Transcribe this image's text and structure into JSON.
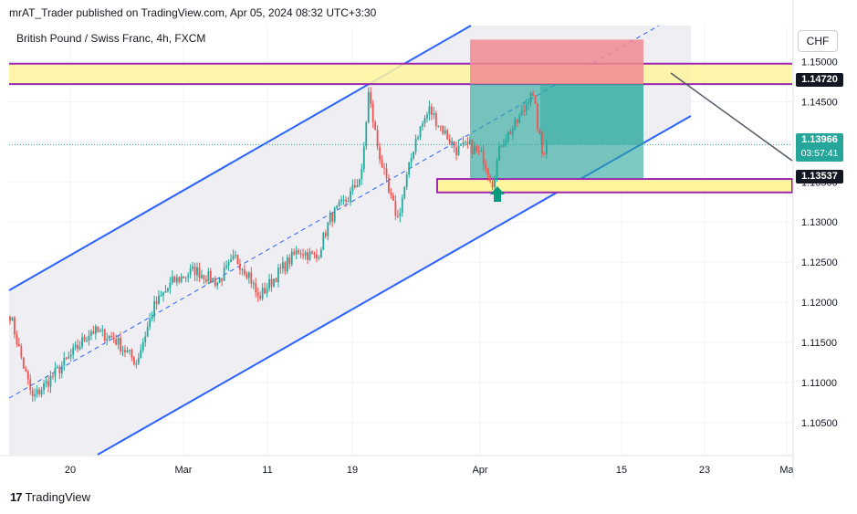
{
  "header": {
    "publisher_line": "mrAT_Trader published on TradingView.com, Apr 05, 2024 08:32 UTC+3:30"
  },
  "symbol": {
    "title": "British Pound / Swiss Franc, 4h, FXCM",
    "currency": "CHF"
  },
  "footer": {
    "brand": "TradingView",
    "mark": "17"
  },
  "colors": {
    "up": "#26a69a",
    "down": "#ef5350",
    "channel_line": "#2962ff",
    "channel_fill": "#eeeef3",
    "zone_fill": "#fff59d",
    "zone_border": "#9c27b0",
    "stop_fill": "#f08a90",
    "target_fill": "#26a69a",
    "arrow": "#089981",
    "price_tag_dark": "#131722"
  },
  "price_labels": {
    "resistance": "1.14720",
    "current_price": "1.13966",
    "countdown": "03:57:41",
    "support": "1.13537"
  },
  "chart_data": {
    "type": "candlestick",
    "title": "British Pound / Swiss Franc, 4h, FXCM",
    "timeframe": "4h",
    "y_axis": {
      "range": [
        1.101,
        1.1545
      ],
      "ticks": [
        "1.15000",
        "1.14500",
        "1.14000",
        "1.13500",
        "1.13000",
        "1.12500",
        "1.12000",
        "1.11500",
        "1.11000",
        "1.10500"
      ],
      "side": "right"
    },
    "x_axis": {
      "ticks": [
        "20",
        "Mar",
        "11",
        "19",
        "Apr",
        "15",
        "23",
        "Ma"
      ]
    },
    "grid": true,
    "anchors": [
      {
        "bar": 0,
        "close": 1.1185
      },
      {
        "bar": 6,
        "close": 1.112
      },
      {
        "bar": 10,
        "close": 1.108
      },
      {
        "bar": 18,
        "close": 1.1105
      },
      {
        "bar": 26,
        "close": 1.113
      },
      {
        "bar": 36,
        "close": 1.1165
      },
      {
        "bar": 46,
        "close": 1.1155
      },
      {
        "bar": 56,
        "close": 1.1125
      },
      {
        "bar": 64,
        "close": 1.1195
      },
      {
        "bar": 72,
        "close": 1.1225
      },
      {
        "bar": 82,
        "close": 1.124
      },
      {
        "bar": 92,
        "close": 1.1225
      },
      {
        "bar": 100,
        "close": 1.1255
      },
      {
        "bar": 106,
        "close": 1.1235
      },
      {
        "bar": 110,
        "close": 1.1205
      },
      {
        "bar": 120,
        "close": 1.124
      },
      {
        "bar": 128,
        "close": 1.1265
      },
      {
        "bar": 136,
        "close": 1.1255
      },
      {
        "bar": 142,
        "close": 1.1305
      },
      {
        "bar": 150,
        "close": 1.133
      },
      {
        "bar": 156,
        "close": 1.136
      },
      {
        "bar": 159,
        "close": 1.146
      },
      {
        "bar": 163,
        "close": 1.1395
      },
      {
        "bar": 168,
        "close": 1.1335
      },
      {
        "bar": 172,
        "close": 1.1305
      },
      {
        "bar": 180,
        "close": 1.1405
      },
      {
        "bar": 186,
        "close": 1.144
      },
      {
        "bar": 192,
        "close": 1.1415
      },
      {
        "bar": 198,
        "close": 1.139
      },
      {
        "bar": 204,
        "close": 1.1395
      },
      {
        "bar": 210,
        "close": 1.138
      },
      {
        "bar": 214,
        "close": 1.135
      },
      {
        "bar": 218,
        "close": 1.14
      },
      {
        "bar": 224,
        "close": 1.142
      },
      {
        "bar": 228,
        "close": 1.144
      },
      {
        "bar": 231,
        "close": 1.1465
      },
      {
        "bar": 233,
        "close": 1.144
      },
      {
        "bar": 236,
        "close": 1.1385
      },
      {
        "bar": 238,
        "close": 1.1397
      }
    ],
    "levels": {
      "resistance_zone": [
        1.1472,
        1.14975
      ],
      "support_zone": [
        1.1337,
        1.13537
      ],
      "entry": 1.1472,
      "stop": 1.15275,
      "target": 1.13537,
      "current_price": 1.13966
    }
  }
}
